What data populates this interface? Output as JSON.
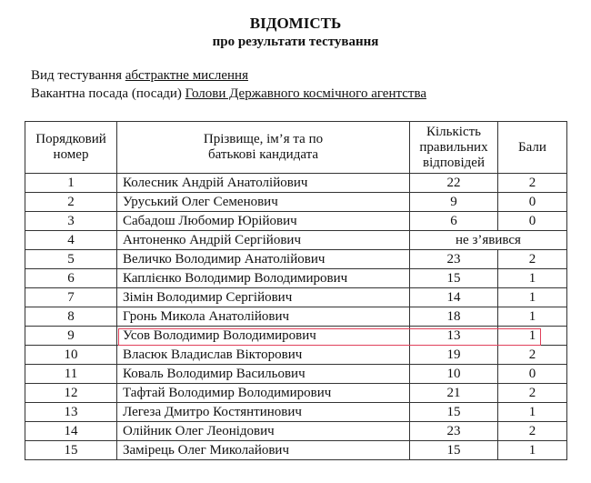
{
  "title": "ВІДОМІСТЬ",
  "subtitle": "про результати тестування",
  "test_type": {
    "label": "Вид тестування",
    "value": "абстрактне мислення"
  },
  "position": {
    "label": "Вакантна посада (посади)",
    "value": "Голови Державного космічного агентства"
  },
  "table": {
    "headers": [
      "Порядковий номер",
      "Прізвище, ім’я та по батькові кандидата",
      "Кількість правильних відповідей",
      "Бали"
    ],
    "rows": [
      {
        "num": "1",
        "name": "Колесник Андрій Анатолійович",
        "correct": "22",
        "score": "2"
      },
      {
        "num": "2",
        "name": "Уруський Олег Семенович",
        "correct": "9",
        "score": "0"
      },
      {
        "num": "3",
        "name": "Сабадош Любомир Юрійович",
        "correct": "6",
        "score": "0"
      },
      {
        "num": "4",
        "name": "Антоненко Андрій Сергійович",
        "absent": "не з’явився"
      },
      {
        "num": "5",
        "name": "Величко Володимир Анатолійович",
        "correct": "23",
        "score": "2"
      },
      {
        "num": "6",
        "name": "Каплієнко Володимир Володимирович",
        "correct": "15",
        "score": "1"
      },
      {
        "num": "7",
        "name": "Зімін Володимир Сергійович",
        "correct": "14",
        "score": "1"
      },
      {
        "num": "8",
        "name": "Гронь Микола Анатолійович",
        "correct": "18",
        "score": "1"
      },
      {
        "num": "9",
        "name": "Усов Володимир Володимирович",
        "correct": "13",
        "score": "1",
        "highlighted": true
      },
      {
        "num": "10",
        "name": "Власюк Владислав Вікторович",
        "correct": "19",
        "score": "2"
      },
      {
        "num": "11",
        "name": "Коваль Володимир Васильович",
        "correct": "10",
        "score": "0"
      },
      {
        "num": "12",
        "name": "Тафтай Володимир Володимирович",
        "correct": "21",
        "score": "2"
      },
      {
        "num": "13",
        "name": "Легеза Дмитро Костянтинович",
        "correct": "15",
        "score": "1"
      },
      {
        "num": "14",
        "name": "Олійник Олег Леонідович",
        "correct": "23",
        "score": "2"
      },
      {
        "num": "15",
        "name": "Замірець Олег Миколайович",
        "correct": "15",
        "score": "1"
      }
    ]
  },
  "highlight_color": "#e0405a"
}
